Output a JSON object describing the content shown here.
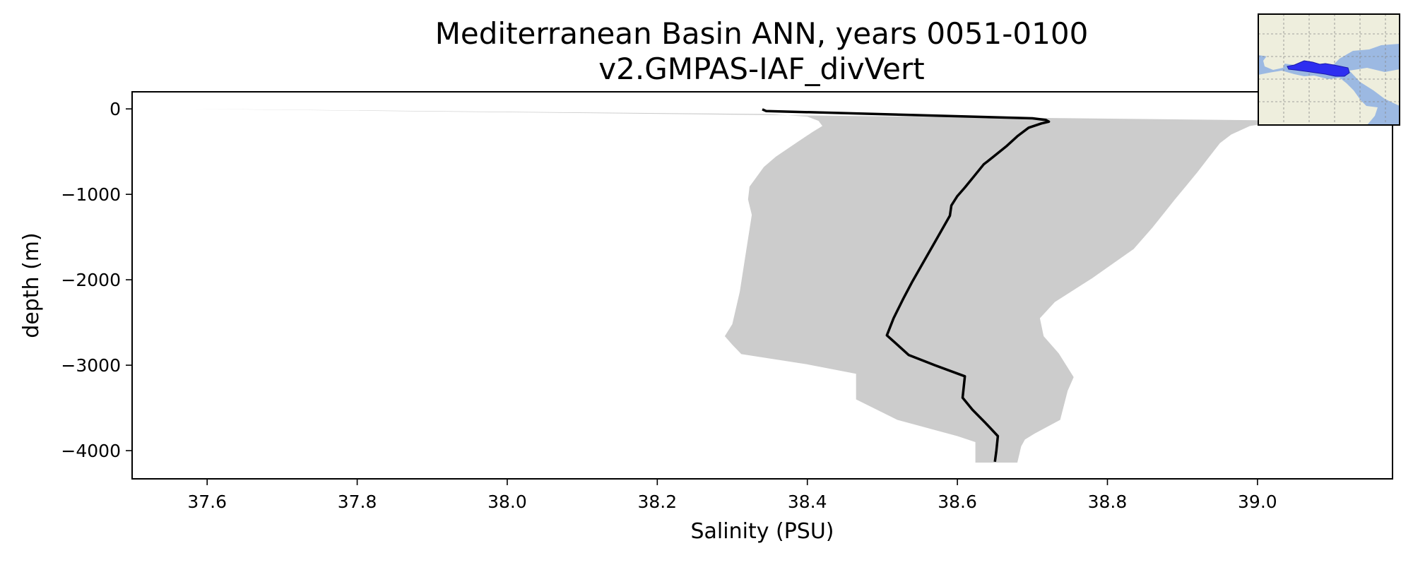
{
  "chart_data": {
    "type": "line",
    "title": "Mediterranean Basin ANN, years 0051-0100",
    "subtitle": "v2.GMPAS-IAF_divVert",
    "xlabel": "Salinity (PSU)",
    "ylabel": "depth (m)",
    "xlim": [
      37.5,
      39.18
    ],
    "ylim": [
      -4330,
      200
    ],
    "xticks": [
      37.6,
      37.8,
      38.0,
      38.2,
      38.4,
      38.6,
      38.8,
      39.0
    ],
    "xtick_labels": [
      "37.6",
      "37.8",
      "38.0",
      "38.2",
      "38.4",
      "38.6",
      "38.8",
      "39.0"
    ],
    "yticks": [
      0,
      -1000,
      -2000,
      -3000,
      -4000
    ],
    "ytick_labels": [
      "0",
      "−1000",
      "−2000",
      "−3000",
      "−4000"
    ],
    "grid": false,
    "legend": "none",
    "series": [
      {
        "kind": "mean_profile",
        "color": "#000000",
        "points": [
          [
            38.34,
            -5
          ],
          [
            38.345,
            -25
          ],
          [
            38.7,
            -110
          ],
          [
            38.718,
            -130
          ],
          [
            38.722,
            -150
          ],
          [
            38.712,
            -170
          ],
          [
            38.695,
            -220
          ],
          [
            38.68,
            -320
          ],
          [
            38.665,
            -440
          ],
          [
            38.648,
            -560
          ],
          [
            38.635,
            -650
          ],
          [
            38.622,
            -790
          ],
          [
            38.61,
            -920
          ],
          [
            38.6,
            -1020
          ],
          [
            38.592,
            -1130
          ],
          [
            38.59,
            -1250
          ],
          [
            38.57,
            -1560
          ],
          [
            38.553,
            -1820
          ],
          [
            38.54,
            -2020
          ],
          [
            38.528,
            -2220
          ],
          [
            38.515,
            -2450
          ],
          [
            38.506,
            -2650
          ],
          [
            38.52,
            -2760
          ],
          [
            38.535,
            -2880
          ],
          [
            38.57,
            -3000
          ],
          [
            38.61,
            -3130
          ],
          [
            38.607,
            -3380
          ],
          [
            38.62,
            -3520
          ],
          [
            38.638,
            -3680
          ],
          [
            38.654,
            -3830
          ],
          [
            38.652,
            -4000
          ],
          [
            38.65,
            -4130
          ]
        ]
      },
      {
        "kind": "range_band",
        "color": "#cccccc",
        "lower": [
          [
            37.58,
            0
          ],
          [
            38.35,
            -60
          ],
          [
            38.4,
            -90
          ],
          [
            38.415,
            -140
          ],
          [
            38.42,
            -200
          ],
          [
            38.407,
            -270
          ],
          [
            38.388,
            -380
          ],
          [
            38.358,
            -560
          ],
          [
            38.342,
            -680
          ],
          [
            38.323,
            -910
          ],
          [
            38.321,
            -1060
          ],
          [
            38.326,
            -1240
          ],
          [
            38.318,
            -1690
          ],
          [
            38.31,
            -2140
          ],
          [
            38.3,
            -2520
          ],
          [
            38.29,
            -2660
          ],
          [
            38.3,
            -2760
          ],
          [
            38.312,
            -2870
          ],
          [
            38.4,
            -2990
          ],
          [
            38.465,
            -3100
          ],
          [
            38.465,
            -3400
          ],
          [
            38.52,
            -3640
          ],
          [
            38.6,
            -3830
          ],
          [
            38.624,
            -3900
          ],
          [
            38.624,
            -4140
          ]
        ],
        "upper": [
          [
            39.18,
            -150
          ],
          [
            39.02,
            -160
          ],
          [
            38.99,
            -200
          ],
          [
            38.965,
            -300
          ],
          [
            38.95,
            -400
          ],
          [
            38.935,
            -570
          ],
          [
            38.92,
            -740
          ],
          [
            38.905,
            -900
          ],
          [
            38.89,
            -1060
          ],
          [
            38.86,
            -1390
          ],
          [
            38.835,
            -1640
          ],
          [
            38.78,
            -1980
          ],
          [
            38.73,
            -2260
          ],
          [
            38.71,
            -2450
          ],
          [
            38.715,
            -2660
          ],
          [
            38.735,
            -2860
          ],
          [
            38.755,
            -3140
          ],
          [
            38.747,
            -3300
          ],
          [
            38.737,
            -3640
          ],
          [
            38.703,
            -3800
          ],
          [
            38.69,
            -3870
          ],
          [
            38.685,
            -3950
          ],
          [
            38.68,
            -4140
          ]
        ]
      }
    ],
    "inset_map": {
      "region": "Mediterranean Sea",
      "ocean_color": "#9cb9e2",
      "land_color": "#eeeedd",
      "highlight_color": "#2e2ef0"
    }
  }
}
